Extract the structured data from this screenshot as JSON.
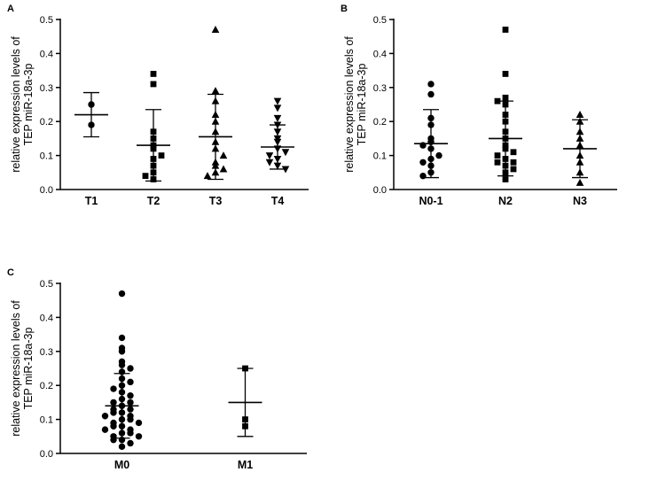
{
  "figure": {
    "background": "#ffffff",
    "ink_color": "#000000",
    "y_axis_title_line1": "relative expression levels of",
    "y_axis_title_line2": "TEP miR-18a-3p"
  },
  "panels": [
    {
      "letter": "A"
    },
    {
      "letter": "B"
    },
    {
      "letter": "C"
    }
  ],
  "chart_data": [
    {
      "type": "scatter",
      "panel": "A",
      "title": "",
      "xlabel": "",
      "ylabel": "relative expression levels of TEP miR-18a-3p",
      "ylim": [
        0,
        0.5
      ],
      "yticks": [
        "0.0",
        "0.1",
        "0.2",
        "0.3",
        "0.4",
        "0.5"
      ],
      "categories": [
        "T1",
        "T2",
        "T3",
        "T4"
      ],
      "groups": [
        {
          "label": "T1",
          "marker": "circle",
          "mean": 0.22,
          "sd": 0.065,
          "points": [
            0.25,
            0.19
          ]
        },
        {
          "label": "T2",
          "marker": "square",
          "mean": 0.13,
          "sd": 0.105,
          "points": [
            0.34,
            0.31,
            0.17,
            0.15,
            0.13,
            0.12,
            0.1,
            0.09,
            0.07,
            0.05,
            0.04,
            0.03
          ]
        },
        {
          "label": "T3",
          "marker": "triangle-up",
          "mean": 0.155,
          "sd": 0.125,
          "points": [
            0.47,
            0.29,
            0.26,
            0.22,
            0.2,
            0.17,
            0.14,
            0.12,
            0.1,
            0.08,
            0.07,
            0.06,
            0.05,
            0.04
          ]
        },
        {
          "label": "T4",
          "marker": "triangle-down",
          "mean": 0.125,
          "sd": 0.065,
          "points": [
            0.26,
            0.24,
            0.21,
            0.19,
            0.17,
            0.15,
            0.14,
            0.12,
            0.11,
            0.1,
            0.09,
            0.08,
            0.07,
            0.06
          ]
        }
      ]
    },
    {
      "type": "scatter",
      "panel": "B",
      "title": "",
      "xlabel": "",
      "ylabel": "relative expression levels of TEP miR-18a-3p",
      "ylim": [
        0,
        0.5
      ],
      "yticks": [
        "0.0",
        "0.1",
        "0.2",
        "0.3",
        "0.4",
        "0.5"
      ],
      "categories": [
        "N0-1",
        "N2",
        "N3"
      ],
      "groups": [
        {
          "label": "N0-1",
          "marker": "circle",
          "mean": 0.135,
          "sd": 0.1,
          "points": [
            0.31,
            0.28,
            0.21,
            0.19,
            0.15,
            0.14,
            0.13,
            0.12,
            0.1,
            0.09,
            0.08,
            0.07,
            0.05,
            0.04
          ]
        },
        {
          "label": "N2",
          "marker": "square",
          "mean": 0.15,
          "sd": 0.11,
          "points": [
            0.47,
            0.34,
            0.27,
            0.26,
            0.25,
            0.22,
            0.2,
            0.17,
            0.15,
            0.13,
            0.12,
            0.11,
            0.1,
            0.09,
            0.08,
            0.08,
            0.07,
            0.06,
            0.05,
            0.03
          ]
        },
        {
          "label": "N3",
          "marker": "triangle-up",
          "mean": 0.12,
          "sd": 0.085,
          "points": [
            0.22,
            0.2,
            0.17,
            0.15,
            0.13,
            0.1,
            0.08,
            0.05,
            0.02
          ]
        }
      ]
    },
    {
      "type": "scatter",
      "panel": "C",
      "title": "",
      "xlabel": "",
      "ylabel": "relative expression levels of TEP miR-18a-3p",
      "ylim": [
        0,
        0.5
      ],
      "yticks": [
        "0.0",
        "0.1",
        "0.2",
        "0.3",
        "0.4",
        "0.5"
      ],
      "categories": [
        "M0",
        "M1"
      ],
      "groups": [
        {
          "label": "M0",
          "marker": "circle",
          "mean": 0.14,
          "sd": 0.095,
          "points": [
            0.47,
            0.34,
            0.31,
            0.3,
            0.27,
            0.26,
            0.25,
            0.24,
            0.22,
            0.21,
            0.2,
            0.19,
            0.18,
            0.17,
            0.16,
            0.15,
            0.15,
            0.14,
            0.13,
            0.13,
            0.12,
            0.12,
            0.11,
            0.11,
            0.1,
            0.1,
            0.09,
            0.09,
            0.08,
            0.08,
            0.07,
            0.07,
            0.06,
            0.06,
            0.05,
            0.05,
            0.04,
            0.04,
            0.03,
            0.02
          ]
        },
        {
          "label": "M1",
          "marker": "square",
          "mean": 0.15,
          "sd": 0.1,
          "points": [
            0.25,
            0.1,
            0.08
          ]
        }
      ]
    }
  ]
}
